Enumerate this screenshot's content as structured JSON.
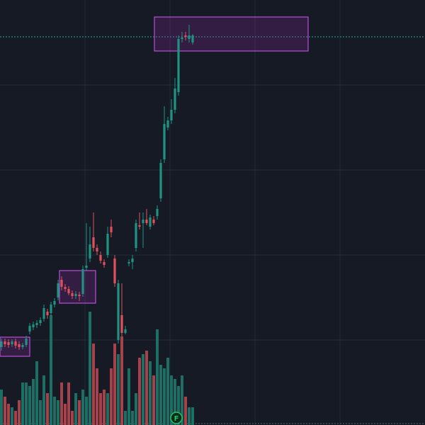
{
  "chart_data": {
    "type": "candlestick",
    "open": [
      110,
      118,
      117,
      114,
      118,
      114,
      110,
      113,
      132,
      138,
      141,
      144,
      150,
      160,
      158,
      170,
      180,
      205,
      195,
      192,
      186,
      182,
      184,
      185,
      222,
      235,
      265,
      250,
      240,
      230,
      240,
      280,
      235,
      120,
      155,
      130,
      228,
      230,
      250,
      282,
      285,
      290,
      280,
      290,
      295,
      320,
      375,
      420,
      430,
      445,
      470,
      545,
      550,
      545,
      540
    ],
    "high": [
      122,
      122,
      121,
      121,
      122,
      118,
      116,
      126,
      144,
      146,
      148,
      152,
      170,
      164,
      174,
      179,
      205,
      210,
      199,
      196,
      190,
      189,
      188,
      225,
      285,
      280,
      300,
      255,
      245,
      234,
      280,
      290,
      240,
      205,
      200,
      140,
      234,
      240,
      290,
      300,
      300,
      305,
      297,
      295,
      310,
      375,
      450,
      435,
      460,
      490,
      550,
      555,
      555,
      565,
      552
    ],
    "low": [
      105,
      110,
      109,
      110,
      108,
      106,
      107,
      110,
      128,
      134,
      137,
      140,
      146,
      150,
      154,
      166,
      176,
      190,
      188,
      183,
      178,
      178,
      175,
      181,
      218,
      230,
      245,
      240,
      228,
      222,
      236,
      265,
      195,
      115,
      125,
      128,
      224,
      220,
      245,
      276,
      250,
      282,
      276,
      282,
      290,
      315,
      370,
      416,
      425,
      440,
      465,
      540,
      543,
      540,
      537
    ],
    "close": [
      118,
      114,
      113,
      118,
      112,
      110,
      113,
      122,
      140,
      142,
      144,
      148,
      165,
      155,
      170,
      175,
      200,
      195,
      192,
      186,
      182,
      185,
      182,
      220,
      225,
      255,
      250,
      245,
      232,
      226,
      270,
      272,
      200,
      200,
      130,
      135,
      230,
      235,
      285,
      280,
      290,
      285,
      293,
      285,
      305,
      370,
      425,
      430,
      445,
      475,
      545,
      547,
      548,
      550,
      550
    ],
    "volume": [
      50,
      40,
      30,
      25,
      20,
      35,
      60,
      60,
      55,
      65,
      90,
      35,
      70,
      45,
      155,
      40,
      35,
      60,
      30,
      60,
      20,
      45,
      35,
      50,
      40,
      160,
      115,
      80,
      45,
      50,
      45,
      80,
      115,
      100,
      125,
      20,
      80,
      20,
      45,
      95,
      100,
      105,
      90,
      70,
      135,
      85,
      80,
      95,
      70,
      65,
      55,
      70,
      40,
      25,
      25
    ],
    "up_color": "#1f9281",
    "down_color": "#e0505c",
    "up_volume_color": "#1d6f63",
    "down_volume_color": "#a8424a",
    "ylim": [
      0,
      600
    ],
    "volume_ylim": [
      0,
      600
    ],
    "event_marker": "F"
  }
}
